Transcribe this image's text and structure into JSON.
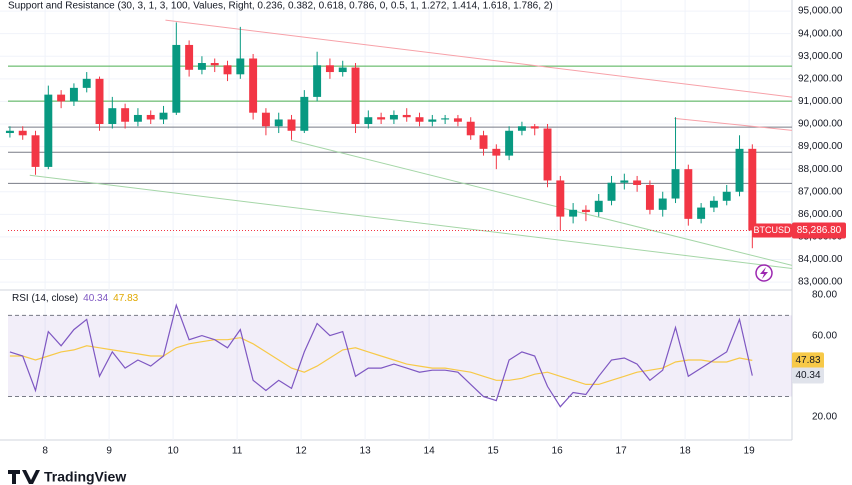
{
  "brand": "TradingView",
  "chart_data": [
    {
      "type": "candlestick",
      "title": "Support and Resistance (30, 3, 1, 3, 100, Values, Right, 0.236, 0.382, 0.618, 0.786, 0, 0.5, 1, 1.272, 1.414, 1.618, 1.786, 2)",
      "symbol": "BTCUSD",
      "up_color": "#089981",
      "down_color": "#f23645",
      "grid": true,
      "x": [
        7.45,
        7.65,
        7.85,
        8.05,
        8.25,
        8.45,
        8.65,
        8.85,
        9.05,
        9.25,
        9.45,
        9.65,
        9.85,
        10.05,
        10.25,
        10.45,
        10.65,
        10.85,
        11.05,
        11.25,
        11.45,
        11.65,
        11.85,
        12.05,
        12.25,
        12.45,
        12.65,
        12.85,
        13.05,
        13.25,
        13.45,
        13.65,
        13.85,
        14.05,
        14.25,
        14.45,
        14.65,
        14.85,
        15.05,
        15.25,
        15.45,
        15.65,
        15.85,
        16.05,
        16.25,
        16.45,
        16.65,
        16.85,
        17.05,
        17.25,
        17.45,
        17.65,
        17.85,
        18.05,
        18.25,
        18.45,
        18.65,
        18.85,
        19.05
      ],
      "open": [
        89600,
        89700,
        89500,
        88100,
        91300,
        91000,
        91600,
        92000,
        90000,
        90700,
        90100,
        90400,
        90200,
        90500,
        93500,
        92400,
        92700,
        92600,
        92200,
        92900,
        90500,
        89900,
        90200,
        89700,
        91200,
        92600,
        92300,
        92500,
        90000,
        90300,
        90200,
        90400,
        90300,
        90100,
        90200,
        90250,
        90100,
        89500,
        88900,
        88600,
        89700,
        89900,
        89800,
        87500,
        85900,
        86200,
        86100,
        86600,
        87400,
        87500,
        87300,
        86200,
        86700,
        88000,
        85800,
        86300,
        86600,
        87000,
        88900
      ],
      "high": [
        89900,
        89900,
        89700,
        91700,
        91500,
        91800,
        92300,
        92100,
        91200,
        90900,
        90700,
        90600,
        90800,
        94500,
        93700,
        93000,
        92900,
        92800,
        94300,
        93100,
        90700,
        90500,
        90400,
        91500,
        93200,
        92900,
        92800,
        92700,
        90600,
        90500,
        90600,
        90700,
        90500,
        90400,
        90400,
        90400,
        90300,
        89700,
        89100,
        89900,
        90100,
        90000,
        90000,
        87700,
        86500,
        86400,
        86900,
        87700,
        87800,
        87700,
        87500,
        87000,
        90300,
        88200,
        86500,
        86800,
        87300,
        89500,
        89100
      ],
      "low": [
        89400,
        89300,
        87750,
        88000,
        90700,
        90800,
        91400,
        89700,
        89800,
        89800,
        89900,
        90000,
        90000,
        90400,
        92100,
        92200,
        92300,
        91900,
        92000,
        90200,
        89500,
        89600,
        89300,
        89600,
        91000,
        92000,
        92100,
        89600,
        89800,
        90000,
        90000,
        90100,
        89900,
        89900,
        90000,
        89900,
        89300,
        88600,
        88000,
        88400,
        89500,
        89500,
        87200,
        85300,
        85600,
        85700,
        85900,
        86400,
        87100,
        87000,
        86000,
        85900,
        86500,
        85500,
        85600,
        86100,
        86400,
        86800,
        84500
      ],
      "close": [
        89700,
        89500,
        88100,
        91300,
        91000,
        91600,
        92000,
        90000,
        90700,
        90100,
        90400,
        90200,
        90500,
        93500,
        92400,
        92700,
        92600,
        92200,
        92900,
        90500,
        89900,
        90200,
        89700,
        91200,
        92600,
        92300,
        92500,
        90000,
        90300,
        90200,
        90400,
        90300,
        90100,
        90200,
        90250,
        90100,
        89500,
        88900,
        88600,
        89700,
        89900,
        89800,
        87500,
        85900,
        86200,
        86100,
        86600,
        87400,
        87500,
        87300,
        86200,
        86700,
        88000,
        85800,
        86300,
        86600,
        87000,
        88900,
        85286.8
      ],
      "last_price": {
        "value": 85286.8,
        "label": "85,286.80"
      },
      "xlim": [
        7.42,
        19.67
      ],
      "xticks": [
        8,
        9,
        10,
        11,
        12,
        13,
        14,
        15,
        16,
        17,
        18,
        19
      ],
      "ylim": [
        82650,
        95490
      ],
      "yticks": [
        {
          "value": 83000,
          "label": "83,000.00"
        },
        {
          "value": 84000,
          "label": "84,000.00"
        },
        {
          "value": 85000,
          "label": "85,000.00"
        },
        {
          "value": 86000,
          "label": "86,000.00"
        },
        {
          "value": 87000,
          "label": "87,000.00"
        },
        {
          "value": 88000,
          "label": "88,000.00"
        },
        {
          "value": 89000,
          "label": "89,000.00"
        },
        {
          "value": 90000,
          "label": "90,000.00"
        },
        {
          "value": 91000,
          "label": "91,000.00"
        },
        {
          "value": 92000,
          "label": "92,000.00"
        },
        {
          "value": 93000,
          "label": "93,000.00"
        },
        {
          "value": 94000,
          "label": "94,000.00"
        },
        {
          "value": 95000,
          "label": "95,000.00"
        }
      ],
      "levels": [
        {
          "value": 92560,
          "color": "#4caf50"
        },
        {
          "value": 91010,
          "color": "#4caf50"
        },
        {
          "value": 89860,
          "color": "#787b86"
        },
        {
          "value": 88750,
          "color": "#787b86"
        },
        {
          "value": 87370,
          "color": "#787b86"
        }
      ],
      "trendlines": [
        {
          "color": "#f7a1a8",
          "x": [
            9.88,
            19.67
          ],
          "y": [
            94600,
            91190
          ]
        },
        {
          "color": "#f7a1a8",
          "x": [
            17.83,
            19.67
          ],
          "y": [
            90250,
            89720
          ]
        },
        {
          "color": "#a5d6a7",
          "x": [
            11.84,
            19.67
          ],
          "y": [
            89280,
            83740
          ]
        },
        {
          "color": "#a5d6a7",
          "x": [
            7.76,
            19.67
          ],
          "y": [
            87730,
            83600
          ]
        }
      ]
    },
    {
      "type": "line",
      "title": "RSI (14, close)",
      "x": [
        7.45,
        7.65,
        7.85,
        8.05,
        8.25,
        8.45,
        8.65,
        8.85,
        9.05,
        9.25,
        9.45,
        9.65,
        9.85,
        10.05,
        10.25,
        10.45,
        10.65,
        10.85,
        11.05,
        11.25,
        11.45,
        11.65,
        11.85,
        12.05,
        12.25,
        12.45,
        12.65,
        12.85,
        13.05,
        13.25,
        13.45,
        13.65,
        13.85,
        14.05,
        14.25,
        14.45,
        14.65,
        14.85,
        15.05,
        15.25,
        15.45,
        15.65,
        15.85,
        16.05,
        16.25,
        16.45,
        16.65,
        16.85,
        17.05,
        17.25,
        17.45,
        17.65,
        17.85,
        18.05,
        18.25,
        18.45,
        18.65,
        18.85,
        19.05
      ],
      "series": [
        {
          "color": "#7e57c2",
          "values": [
            52,
            50,
            33,
            62,
            55,
            63,
            68,
            40,
            52,
            44,
            48,
            45,
            50,
            75,
            58,
            60,
            58,
            54,
            63,
            38,
            33,
            38,
            34,
            52,
            66,
            60,
            62,
            40,
            44,
            44,
            46,
            44,
            42,
            43,
            43,
            42,
            36,
            30,
            28,
            48,
            52,
            50,
            35,
            25,
            32,
            31,
            40,
            48,
            49,
            46,
            38,
            43,
            64,
            40,
            44,
            48,
            52,
            68,
            40.34
          ]
        },
        {
          "color": "#f7c948",
          "values": [
            50,
            50,
            48,
            50,
            52,
            53,
            55,
            54,
            53,
            52,
            51,
            50,
            50,
            54,
            56,
            57,
            58,
            58,
            59,
            56,
            52,
            48,
            44,
            42,
            45,
            49,
            53,
            54,
            52,
            50,
            48,
            46,
            45,
            44,
            44,
            43,
            42,
            40,
            38,
            38,
            39,
            41,
            42,
            40,
            38,
            36,
            36,
            38,
            40,
            42,
            43,
            44,
            47,
            48,
            48,
            47,
            47,
            49,
            47.83
          ]
        }
      ],
      "bands": [
        30,
        70
      ],
      "xlim": [
        7.42,
        19.67
      ],
      "ylim": [
        8.6,
        81.5
      ],
      "yticks": [
        {
          "value": 20,
          "label": "20.00"
        },
        {
          "value": 60,
          "label": "60.00"
        },
        {
          "value": 80,
          "label": "80.00"
        }
      ]
    }
  ]
}
